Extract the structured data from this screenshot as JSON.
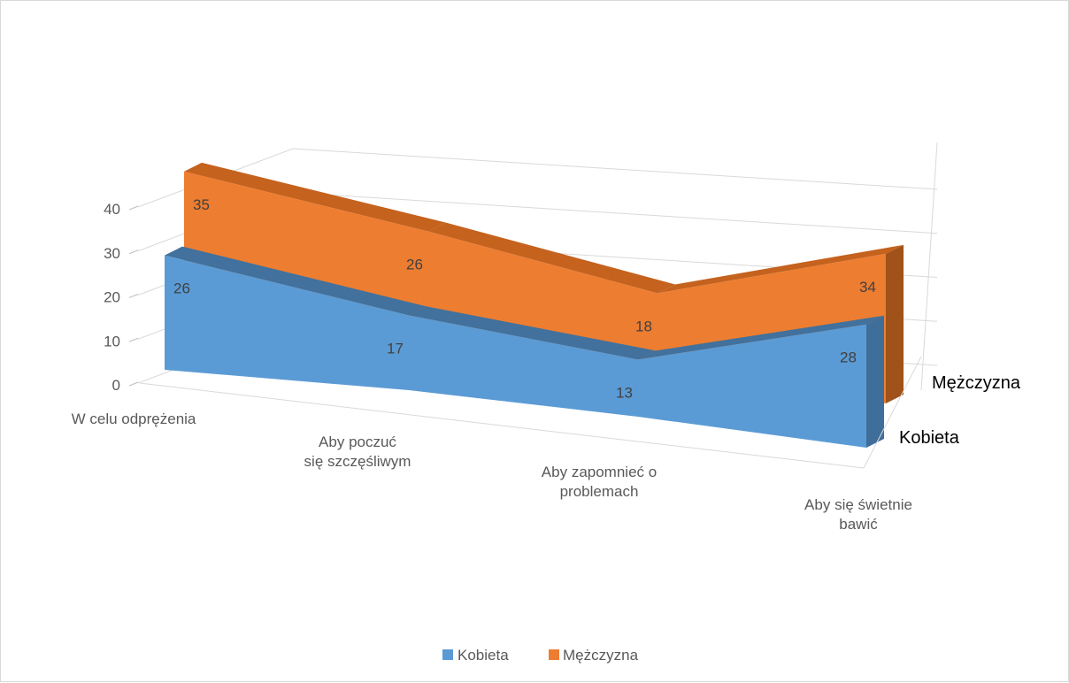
{
  "chart_data": {
    "type": "area",
    "variant": "3d-area",
    "title": "",
    "categories": [
      "W celu odprężenia",
      "Aby poczuć się szczęśliwym",
      "Aby zapomnieć o problemach",
      "Aby się świetnie bawić"
    ],
    "series": [
      {
        "name": "Kobieta",
        "values": [
          26,
          17,
          13,
          28
        ],
        "color": "#5B9BD5",
        "top_color": "#41719C",
        "side_color": "#3F6E9A"
      },
      {
        "name": "Mężczyzna",
        "values": [
          35,
          26,
          18,
          34
        ],
        "color": "#ED7D31",
        "top_color": "#C4621E",
        "side_color": "#A0521A"
      }
    ],
    "ylim": [
      0,
      40
    ],
    "yticks": [
      0,
      10,
      20,
      30,
      40
    ],
    "grid": true,
    "legend": "bottom",
    "data_labels": true
  }
}
